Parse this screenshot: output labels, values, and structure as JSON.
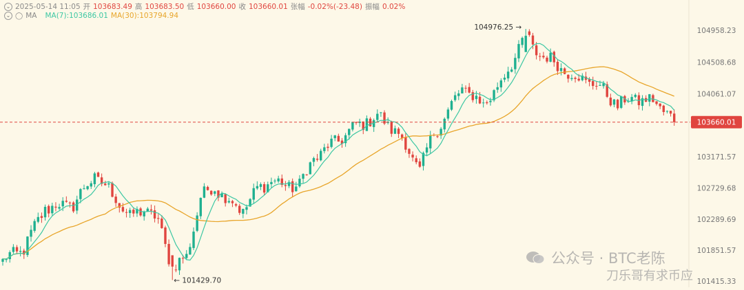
{
  "header": {
    "datetime": "2025-05-14 11:05",
    "open_label": "开",
    "open_value": "103683.49",
    "high_label": "高",
    "high_value": "103683.50",
    "low_label": "低",
    "low_value": "103660.00",
    "close_label": "收",
    "close_value": "103660.01",
    "change_label": "张幅",
    "change_value": "-0.02%(-23.48)",
    "amp_label": "振幅",
    "amp_value": "0.02%",
    "ma_label": "MA",
    "ma7_text": "MA(7):103686.01",
    "ma30_text": "MA(30):103794.94"
  },
  "watermark": {
    "line1": "公众号 · BTC老陈",
    "line2": "刀乐哥有求币应"
  },
  "colors": {
    "up": "#1fb090",
    "down": "#e0453f",
    "ma7": "#3cc7a3",
    "ma30": "#e8a52a",
    "background": "#fdf8e8",
    "price_tag": "#e0453f"
  },
  "chart_data": {
    "type": "candlestick",
    "y_ticks": [
      "104958.23",
      "104508.68",
      "104061.07",
      "103171.57",
      "102729.68",
      "102289.69",
      "101851.57",
      "101415.33"
    ],
    "ylim": [
      101415.33,
      104958.23
    ],
    "current_price": "103660.01",
    "annotations": [
      {
        "text": "104976.25",
        "price": 104976.25,
        "candle_index": 148
      },
      {
        "text": "101429.70",
        "price": 101429.7,
        "candle_index": 48
      }
    ],
    "series": [
      {
        "name": "MA(7)",
        "last_value": 103686.01
      },
      {
        "name": "MA(30)",
        "last_value": 103794.94
      }
    ],
    "path": [
      [
        0,
        101700
      ],
      [
        6,
        101880
      ],
      [
        12,
        102450
      ],
      [
        20,
        102500
      ],
      [
        24,
        102780
      ],
      [
        26,
        102900
      ],
      [
        32,
        102600
      ],
      [
        36,
        102300
      ],
      [
        40,
        102450
      ],
      [
        44,
        102250
      ],
      [
        48,
        101600
      ],
      [
        52,
        101750
      ],
      [
        56,
        102600
      ],
      [
        60,
        102750
      ],
      [
        64,
        102550
      ],
      [
        68,
        102420
      ],
      [
        72,
        102700
      ],
      [
        76,
        102850
      ],
      [
        80,
        102750
      ],
      [
        84,
        102780
      ],
      [
        88,
        103150
      ],
      [
        92,
        103300
      ],
      [
        96,
        103450
      ],
      [
        100,
        103600
      ],
      [
        106,
        103750
      ],
      [
        112,
        103500
      ],
      [
        116,
        103150
      ],
      [
        118,
        103000
      ],
      [
        122,
        103500
      ],
      [
        126,
        103800
      ],
      [
        130,
        104150
      ],
      [
        136,
        103900
      ],
      [
        142,
        104300
      ],
      [
        148,
        104900
      ],
      [
        150,
        104700
      ],
      [
        156,
        104500
      ],
      [
        162,
        104300
      ],
      [
        168,
        104200
      ],
      [
        174,
        103900
      ],
      [
        178,
        104000
      ],
      [
        184,
        103950
      ],
      [
        188,
        103800
      ],
      [
        190,
        103660
      ]
    ],
    "candle_count": 191
  }
}
